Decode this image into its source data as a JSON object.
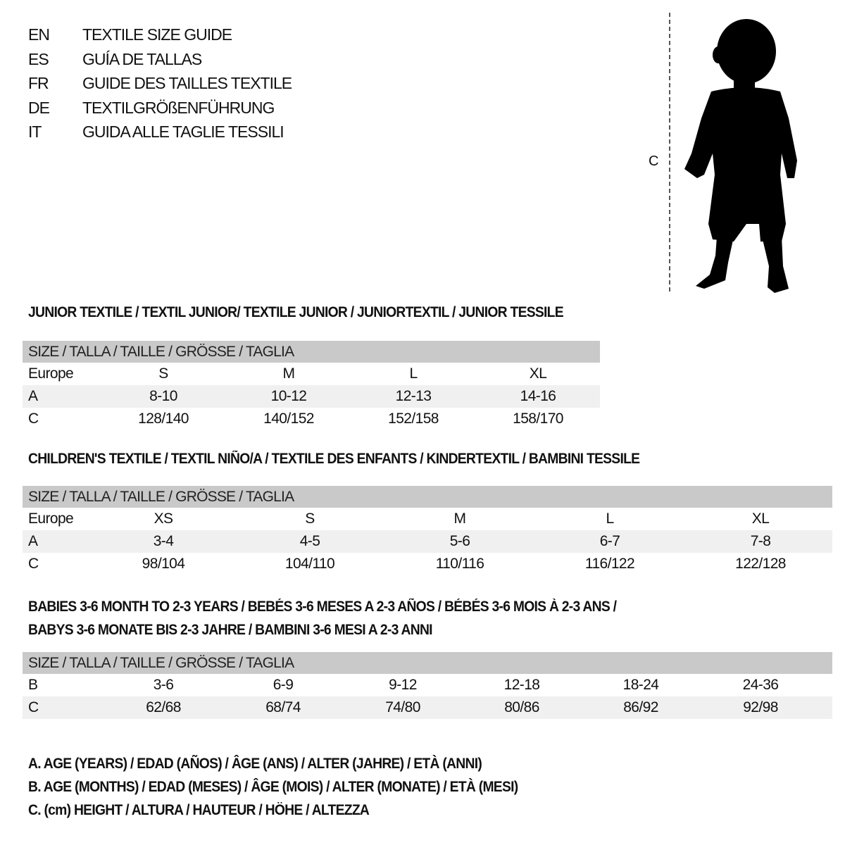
{
  "title_lines": [
    {
      "code": "EN",
      "text": "TEXTILE SIZE GUIDE"
    },
    {
      "code": "ES",
      "text": "GUÍA DE TALLAS"
    },
    {
      "code": "FR",
      "text": "GUIDE DES TAILLES TEXTILE"
    },
    {
      "code": "DE",
      "text": "TEXTILGRÖßENFÜHRUNG"
    },
    {
      "code": "IT",
      "text": "GUIDA ALLE TAGLIE TESSILI"
    }
  ],
  "figure": {
    "height_label": "C",
    "icon": "child-silhouette-icon"
  },
  "sections": [
    {
      "title": "JUNIOR TEXTILE / TEXTIL JUNIOR/ TEXTILE JUNIOR / JUNIORTEXTIL / JUNIOR TESSILE",
      "title2": "",
      "header": "SIZE / TALLA / TAILLE / GRÖSSE / TAGLIA",
      "rows": [
        {
          "label": "Europe",
          "cells": [
            "S",
            "M",
            "L",
            "XL"
          ]
        },
        {
          "label": "A",
          "cells": [
            "8-10",
            "10-12",
            "12-13",
            "14-16"
          ]
        },
        {
          "label": "C",
          "cells": [
            "128/140",
            "140/152",
            "152/158",
            "158/170"
          ]
        }
      ]
    },
    {
      "title": "CHILDREN'S TEXTILE / TEXTIL NIÑO/A / TEXTILE DES ENFANTS / KINDERTEXTIL / BAMBINI TESSILE",
      "title2": "",
      "header": "SIZE / TALLA / TAILLE / GRÖSSE / TAGLIA",
      "rows": [
        {
          "label": "Europe",
          "cells": [
            "XS",
            "S",
            "M",
            "L",
            "XL"
          ]
        },
        {
          "label": "A",
          "cells": [
            "3-4",
            "4-5",
            "5-6",
            "6-7",
            "7-8"
          ]
        },
        {
          "label": "C",
          "cells": [
            "98/104",
            "104/110",
            "110/116",
            "116/122",
            "122/128"
          ]
        }
      ]
    },
    {
      "title": "BABIES 3-6 MONTH TO 2-3 YEARS / BEBÉS 3-6 MESES A 2-3 AÑOS / BÉBÉS 3-6 MOIS À 2-3 ANS /",
      "title2": "BABYS 3-6 MONATE BIS 2-3 JAHRE / BAMBINI 3-6 MESI A 2-3 ANNI",
      "header": "SIZE / TALLA / TAILLE / GRÖSSE / TAGLIA",
      "rows": [
        {
          "label": "B",
          "cells": [
            "3-6",
            "6-9",
            "9-12",
            "12-18",
            "18-24",
            "24-36"
          ]
        },
        {
          "label": "C",
          "cells": [
            "62/68",
            "68/74",
            "74/80",
            "80/86",
            "86/92",
            "92/98"
          ]
        }
      ]
    }
  ],
  "legend": [
    "A. AGE (YEARS) / EDAD (AÑOS) / ÂGE (ANS) / ALTER (JAHRE) / ETÀ (ANNI)",
    "B. AGE (MONTHS) / EDAD (MESES) / ÂGE (MOIS) / ALTER (MONATE) / ETÀ (MESI)",
    "C. (cm) HEIGHT / ALTURA / HAUTEUR / HÖHE / ALTEZZA"
  ]
}
